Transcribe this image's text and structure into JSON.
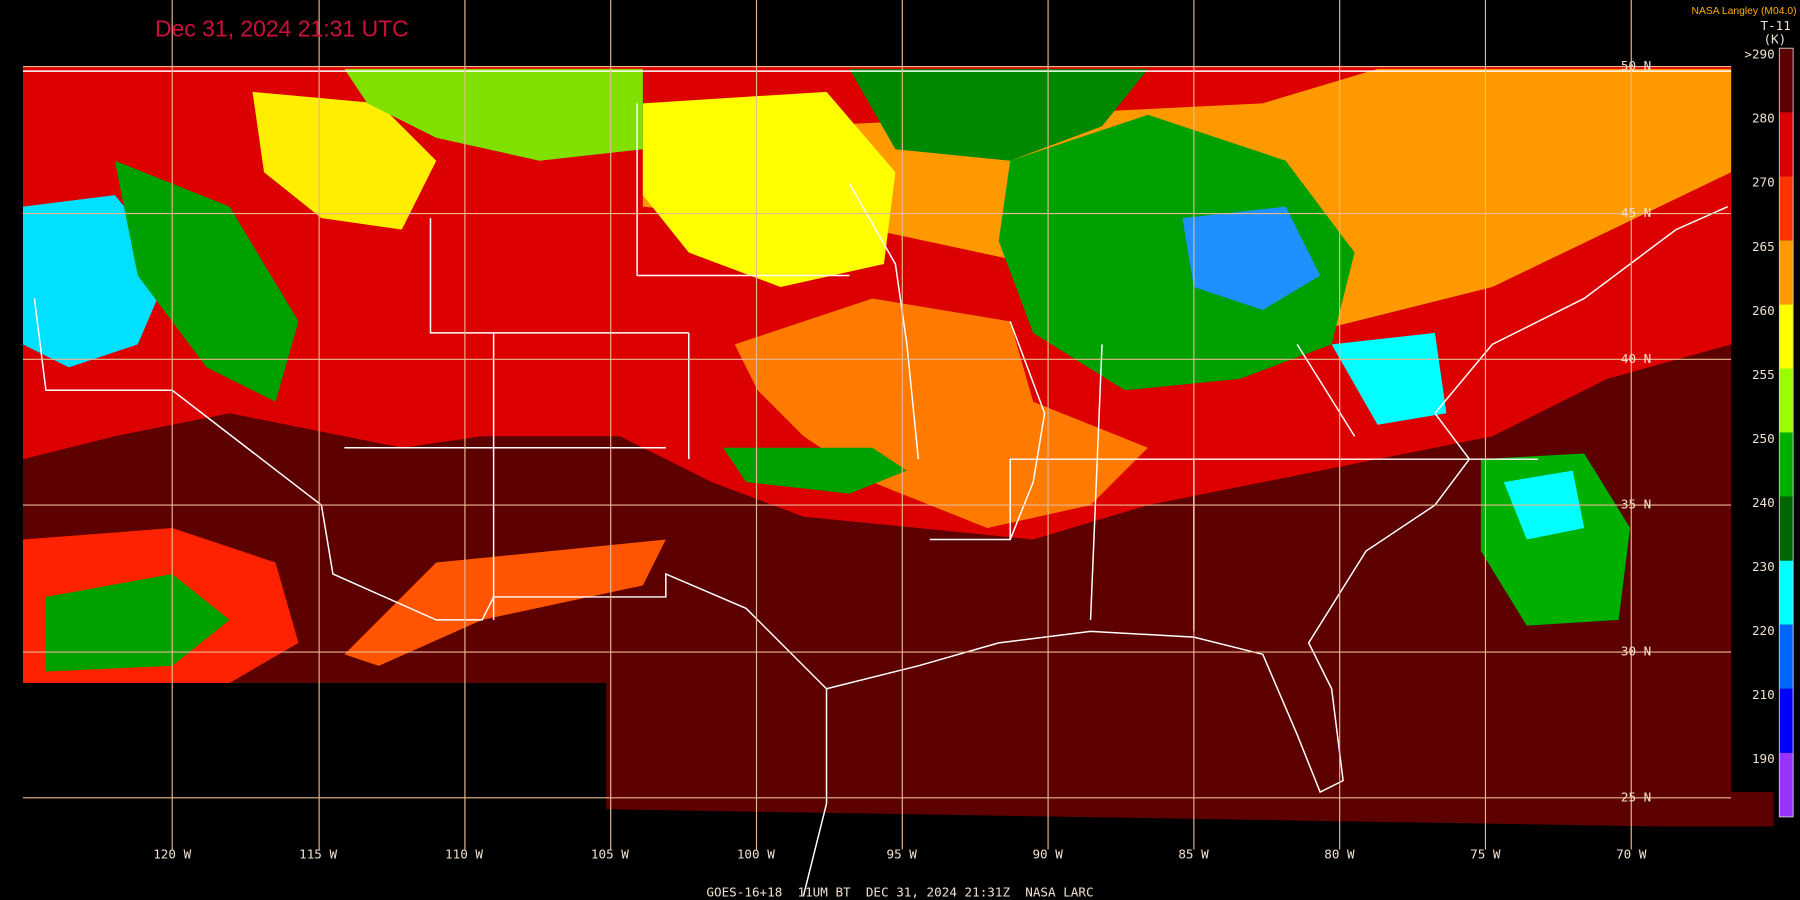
{
  "title": "Dec 31, 2024 21:31 UTC",
  "credit": "NASA Langley (M04.0)",
  "product": "T-11",
  "unit": "(K)",
  "footer": "GOES-16+18  11UM BT  DEC 31, 2024 21:31Z  NASA LARC",
  "latitude_labels": [
    "50 N",
    "45 N",
    "40 N",
    "35 N",
    "30 N",
    "25 N"
  ],
  "longitude_labels": [
    "120 W",
    "115 W",
    "110 W",
    "105 W",
    "100 W",
    "95 W",
    "90 W",
    "85 W",
    "80 W",
    "75 W",
    "70 W"
  ],
  "colorbar": {
    "ticks": [
      {
        "value": 290,
        "label": ">290"
      },
      280,
      270,
      265,
      260,
      255,
      250,
      240,
      230,
      220,
      210,
      190
    ],
    "colors": [
      "#5c0000",
      "#dd0000",
      "#ff3300",
      "#ff9900",
      "#ffff00",
      "#99ff00",
      "#00b000",
      "#006600",
      "#00ffff",
      "#0066ff",
      "#0000ff",
      "#9933ff"
    ]
  }
}
